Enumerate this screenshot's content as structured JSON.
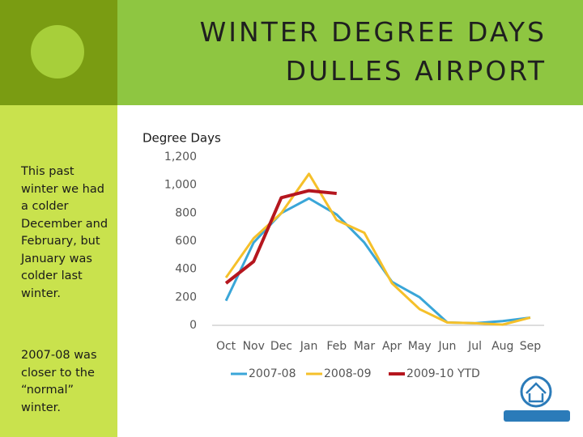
{
  "header": {
    "title_line1": "WINTER DEGREE DAYS",
    "title_line2": "DULLES AIRPORT"
  },
  "sidebar": {
    "note1": "This past winter we had a colder December and February, but January was colder last winter.",
    "note2": "2007-08 was closer to the “normal” winter."
  },
  "chart_data": {
    "type": "line",
    "title": "Degree Days",
    "categories": [
      "Oct",
      "Nov",
      "Dec",
      "Jan",
      "Feb",
      "Mar",
      "Apr",
      "May",
      "Jun",
      "Jul",
      "Aug",
      "Sep"
    ],
    "series": [
      {
        "name": "2007-08",
        "color": "#3aa6d8",
        "values": [
          175,
          590,
          800,
          905,
          790,
          590,
          310,
          200,
          20,
          15,
          30,
          55
        ]
      },
      {
        "name": "2008-09",
        "color": "#f5c02a",
        "values": [
          340,
          620,
          800,
          1080,
          750,
          660,
          300,
          115,
          20,
          15,
          5,
          55
        ]
      },
      {
        "name": "2009-10 YTD",
        "color": "#b5161e",
        "values": [
          300,
          455,
          910,
          960,
          940,
          null,
          null,
          null,
          null,
          null,
          null,
          null
        ]
      }
    ],
    "ylim": [
      0,
      1200
    ],
    "yticks": [
      0,
      200,
      400,
      600,
      800,
      {
        "value": 1000,
        "label": "1,000"
      },
      {
        "value": 1200,
        "label": "1,200"
      }
    ],
    "grid": false,
    "legend": "bottom"
  }
}
